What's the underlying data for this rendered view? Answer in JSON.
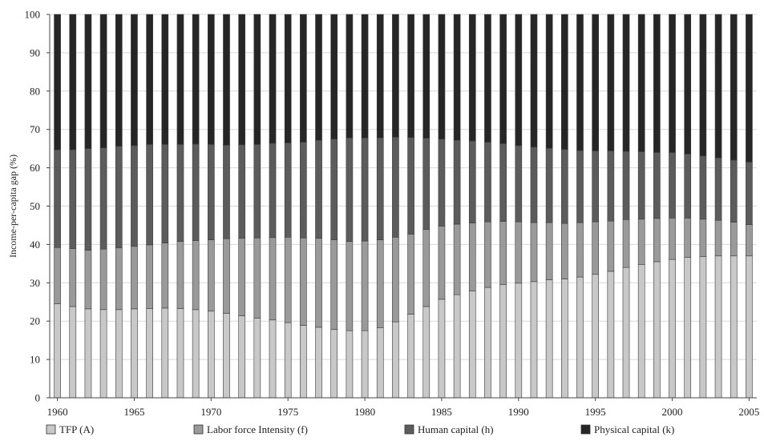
{
  "chart_data": {
    "type": "bar",
    "stacked": true,
    "title": "",
    "xlabel": "",
    "ylabel": "Income-per-capita gap (%)",
    "ylim": [
      0,
      100
    ],
    "yticks": [
      0,
      10,
      20,
      30,
      40,
      50,
      60,
      70,
      80,
      90,
      100
    ],
    "grid": true,
    "legend_position": "bottom",
    "x_tick_labels": [
      "1960",
      "1965",
      "1970",
      "1975",
      "1980",
      "1985",
      "1990",
      "1995",
      "2000",
      "2005"
    ],
    "categories": [
      1960,
      1961,
      1962,
      1963,
      1964,
      1965,
      1966,
      1967,
      1968,
      1969,
      1970,
      1971,
      1972,
      1973,
      1974,
      1975,
      1976,
      1977,
      1978,
      1979,
      1980,
      1981,
      1982,
      1983,
      1984,
      1985,
      1986,
      1987,
      1988,
      1989,
      1990,
      1991,
      1992,
      1993,
      1994,
      1995,
      1996,
      1997,
      1998,
      1999,
      2000,
      2001,
      2002,
      2003,
      2004,
      2005
    ],
    "series": [
      {
        "name": "TFP (A)",
        "color": "#c8c8c8",
        "values": [
          24.5,
          23.8,
          23.2,
          23.0,
          23.0,
          23.2,
          23.3,
          23.4,
          23.3,
          23.0,
          22.6,
          22.0,
          21.4,
          20.8,
          20.3,
          19.6,
          18.9,
          18.4,
          17.8,
          17.5,
          17.5,
          18.3,
          19.8,
          21.8,
          23.8,
          25.7,
          26.9,
          27.9,
          28.8,
          29.5,
          29.9,
          30.3,
          30.8,
          31.0,
          31.5,
          32.2,
          33.0,
          34.0,
          34.8,
          35.5,
          36.1,
          36.6,
          36.8,
          37.0,
          37.0,
          37.0
        ]
      },
      {
        "name": "Labor force Intensity (f)",
        "color": "#9a9a9a",
        "values": [
          14.7,
          15.1,
          15.3,
          15.8,
          16.1,
          16.3,
          16.6,
          17.0,
          17.5,
          18.0,
          18.6,
          19.5,
          20.2,
          20.9,
          21.5,
          22.3,
          22.8,
          23.2,
          23.4,
          23.3,
          23.4,
          22.9,
          22.1,
          20.9,
          20.1,
          19.1,
          18.4,
          17.7,
          17.1,
          16.5,
          16.0,
          15.4,
          14.9,
          14.5,
          14.2,
          13.7,
          13.1,
          12.5,
          11.8,
          11.3,
          10.8,
          10.3,
          9.8,
          9.3,
          8.8,
          8.2
        ]
      },
      {
        "name": "Human capital (h)",
        "color": "#5c5c5c",
        "values": [
          25.5,
          25.8,
          26.5,
          26.4,
          26.5,
          26.3,
          26.2,
          25.7,
          25.3,
          25.2,
          24.9,
          24.4,
          24.4,
          24.4,
          24.6,
          24.6,
          25.0,
          25.6,
          26.3,
          27.0,
          26.9,
          26.6,
          26.1,
          25.2,
          23.8,
          22.7,
          21.9,
          21.4,
          20.8,
          20.3,
          19.9,
          19.7,
          19.4,
          19.3,
          18.8,
          18.5,
          18.3,
          17.8,
          17.6,
          17.2,
          17.1,
          16.7,
          16.5,
          16.3,
          16.2,
          16.3
        ]
      },
      {
        "name": "Physical capital (k)",
        "color": "#262626",
        "values": [
          35.3,
          35.3,
          35.0,
          34.8,
          34.4,
          34.2,
          33.9,
          33.9,
          33.9,
          33.8,
          33.9,
          34.1,
          34.0,
          33.9,
          33.6,
          33.5,
          33.3,
          32.8,
          32.5,
          32.2,
          32.2,
          32.2,
          32.0,
          32.1,
          32.3,
          32.5,
          32.8,
          33.0,
          33.3,
          33.7,
          34.2,
          34.6,
          34.9,
          35.2,
          35.5,
          35.6,
          35.6,
          35.7,
          35.8,
          36.0,
          36.0,
          36.4,
          36.9,
          37.4,
          38.0,
          38.5
        ]
      }
    ]
  }
}
